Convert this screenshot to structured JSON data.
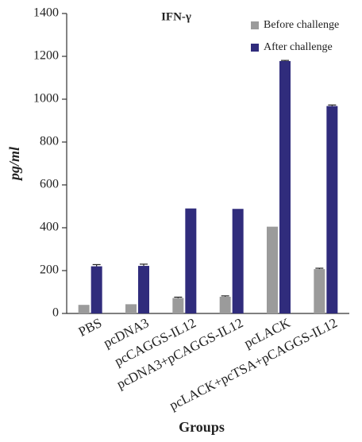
{
  "chart_data": {
    "type": "bar",
    "title": "IFN-γ",
    "x_label": "Groups",
    "y_label": "pg/ml",
    "categories": [
      "PBS",
      "pcDNA3",
      "pcCAGGS-IL12",
      "pcDNA3+pCAGGS-IL12",
      "pcLACK",
      "pcLACK+pcTSA+pCAGGS-IL12"
    ],
    "series": [
      {
        "name": "Before challenge",
        "color": "#9b9b9b",
        "values": [
          40,
          43,
          72,
          78,
          405,
          207
        ],
        "errors": [
          0,
          0,
          4,
          4,
          0,
          4
        ]
      },
      {
        "name": "After challenge",
        "color": "#302c7c",
        "values": [
          220,
          222,
          490,
          488,
          1178,
          968
        ],
        "errors": [
          8,
          8,
          0,
          0,
          3,
          5
        ]
      }
    ],
    "ylim": [
      0,
      1400
    ],
    "yticks": [
      0,
      200,
      400,
      600,
      800,
      1000,
      1200,
      1400
    ],
    "grid": false,
    "legend": "top-right"
  }
}
